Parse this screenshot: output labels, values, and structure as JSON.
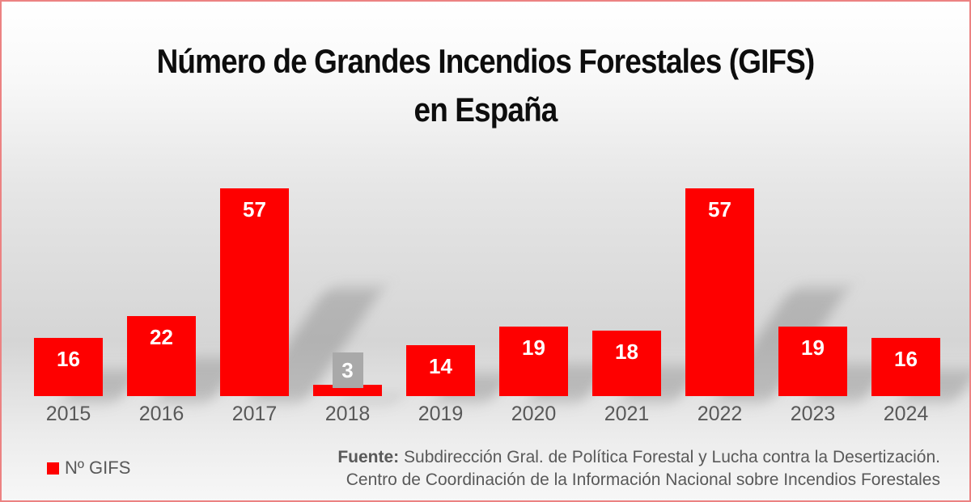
{
  "title": {
    "line1": "Número de Grandes Incendios Forestales (GIFS)",
    "line2": "en España"
  },
  "chart_data": {
    "type": "bar",
    "title": "Número de Grandes Incendios Forestales (GIFS) en España",
    "categories": [
      "2015",
      "2016",
      "2017",
      "2018",
      "2019",
      "2020",
      "2021",
      "2022",
      "2023",
      "2024"
    ],
    "series": [
      {
        "name": "Nº GIFS",
        "values": [
          16,
          22,
          57,
          3,
          14,
          19,
          18,
          57,
          19,
          16
        ]
      }
    ],
    "xlabel": "",
    "ylabel": "",
    "ylim": [
      0,
      57
    ],
    "grid": false,
    "axis_lines": false,
    "legend_position": "bottom-left",
    "data_labels": "inside-end",
    "small_label_threshold": 10,
    "bar_color": "#fe0000",
    "data_label_color": "#ffffff",
    "small_label_box_color": "#a9a9a9",
    "category_label_color": "#595959"
  },
  "legend": {
    "label": "Nº GIFS",
    "swatch_color": "#fe0000"
  },
  "footer": {
    "source_label": "Fuente:",
    "line1_rest": " Subdirección Gral. de Política Forestal y Lucha contra la Desertización.",
    "line2": "Centro de Coordinación de la Información Nacional sobre Incendios Forestales"
  },
  "colors": {
    "bar": "#fe0000",
    "border": "#ec8282",
    "title_text": "#0d0d0d",
    "muted_text": "#595959",
    "callout_box": "#a9a9a9"
  }
}
